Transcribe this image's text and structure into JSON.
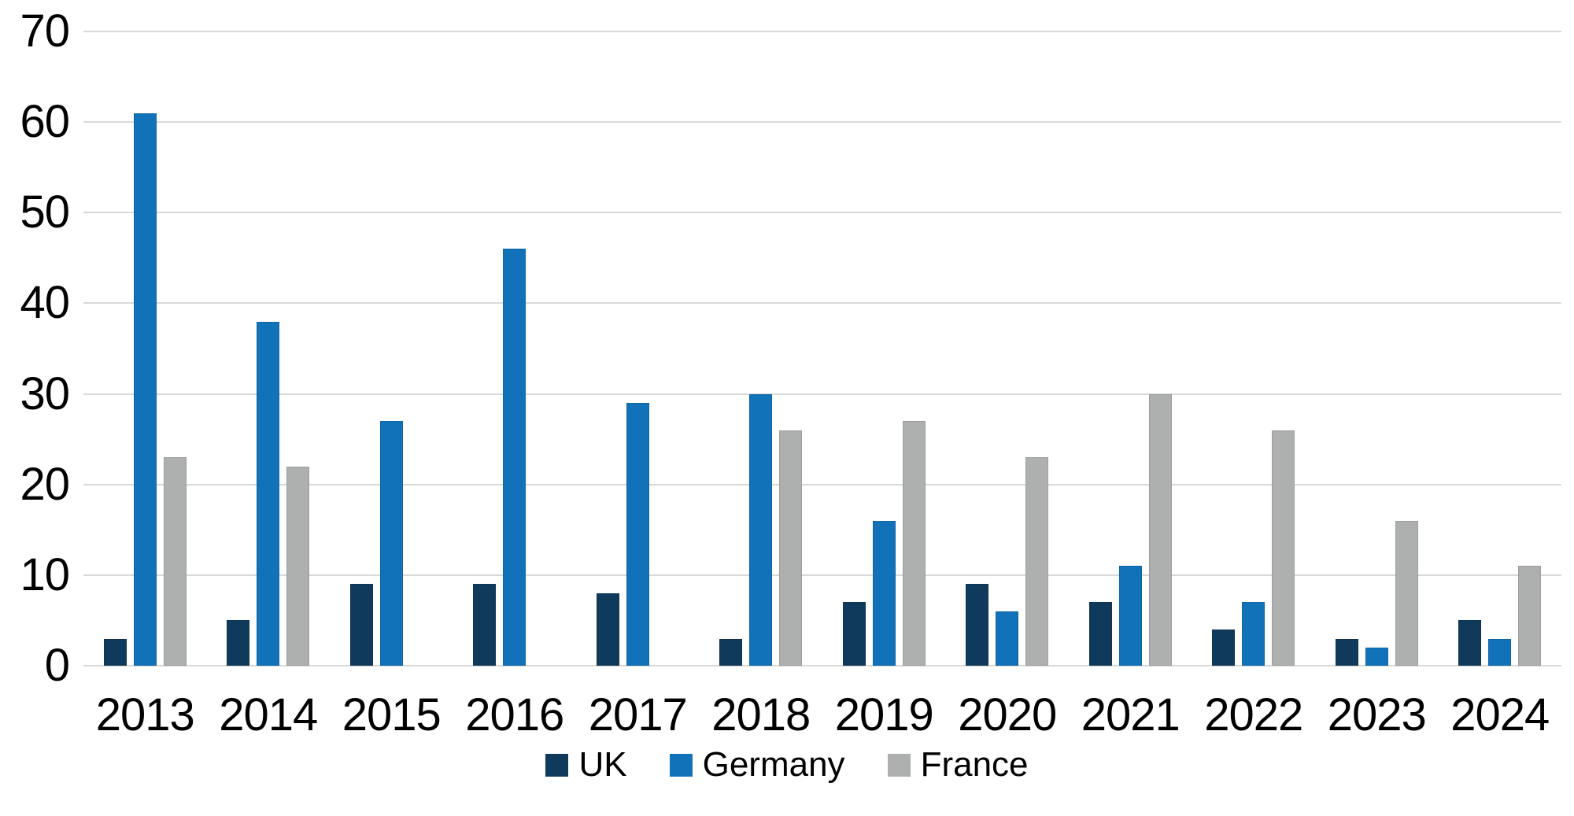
{
  "chart_data": {
    "type": "bar",
    "title": "",
    "categories": [
      "2013",
      "2014",
      "2015",
      "2016",
      "2017",
      "2018",
      "2019",
      "2020",
      "2021",
      "2022",
      "2023",
      "2024"
    ],
    "series": [
      {
        "name": "UK",
        "color": "#103a5c",
        "values": [
          3,
          5,
          9,
          9,
          8,
          3,
          7,
          9,
          7,
          4,
          3,
          5
        ]
      },
      {
        "name": "Germany",
        "color": "#1172b9",
        "values": [
          61,
          38,
          27,
          46,
          29,
          30,
          16,
          6,
          11,
          7,
          2,
          3
        ]
      },
      {
        "name": "France",
        "color": "#aeb0b0",
        "values": [
          23,
          22,
          0,
          0,
          0,
          26,
          27,
          23,
          30,
          26,
          16,
          11
        ]
      }
    ],
    "xlabel": "",
    "ylabel": "",
    "ylim": [
      0,
      70
    ],
    "yticks": [
      0,
      10,
      20,
      30,
      40,
      50,
      60,
      70
    ],
    "grid": true,
    "legend_position": "bottom"
  },
  "colors": {
    "background": "#ffffff",
    "gridline": "#d9d9d9",
    "text": "#000000"
  }
}
